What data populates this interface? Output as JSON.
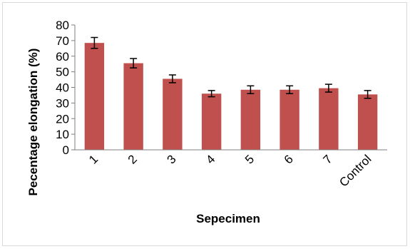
{
  "chart_data": {
    "type": "bar",
    "title": "",
    "xlabel": "Sepecimen",
    "ylabel": "Pecentage elongation (%)",
    "categories": [
      "1",
      "2",
      "3",
      "4",
      "5",
      "6",
      "7",
      "Control"
    ],
    "series": [
      {
        "values": [
          68.5,
          55.5,
          45.5,
          36,
          38.5,
          38.5,
          39.5,
          35.5
        ],
        "errors": [
          3.5,
          3,
          2.5,
          2,
          2.5,
          2.5,
          2.5,
          2.5
        ]
      }
    ],
    "ylim": [
      0,
      80
    ],
    "yticks": [
      0,
      10,
      20,
      30,
      40,
      50,
      60,
      70,
      80
    ],
    "grid": false,
    "legend": "none",
    "bar_color": "#c0504d"
  }
}
